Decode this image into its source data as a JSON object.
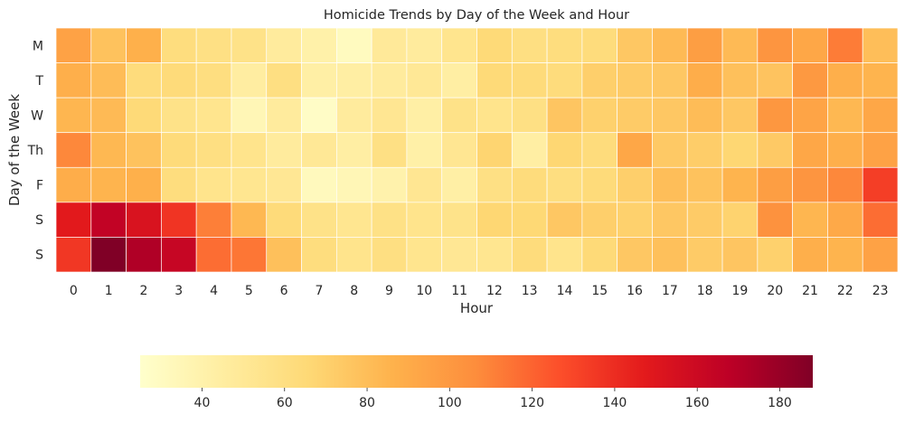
{
  "chart_data": {
    "type": "heatmap",
    "title": "Homicide Trends by Day of the Week and Hour",
    "xlabel": "Hour",
    "ylabel": "Day of the Week",
    "x": [
      "0",
      "1",
      "2",
      "3",
      "4",
      "5",
      "6",
      "7",
      "8",
      "9",
      "10",
      "11",
      "12",
      "13",
      "14",
      "15",
      "16",
      "17",
      "18",
      "19",
      "20",
      "21",
      "22",
      "23"
    ],
    "y": [
      "M",
      "T",
      "W",
      "Th",
      "F",
      "S",
      "S"
    ],
    "values": [
      [
        95,
        78,
        87,
        62,
        59,
        57,
        47,
        41,
        31,
        49,
        47,
        54,
        65,
        60,
        62,
        63,
        75,
        82,
        97,
        82,
        102,
        92,
        112,
        80
      ],
      [
        88,
        81,
        63,
        64,
        61,
        45,
        60,
        43,
        44,
        47,
        50,
        44,
        65,
        64,
        63,
        71,
        73,
        75,
        89,
        79,
        77,
        100,
        88,
        85
      ],
      [
        84,
        82,
        65,
        57,
        54,
        35,
        47,
        28,
        47,
        52,
        43,
        57,
        55,
        59,
        76,
        70,
        73,
        75,
        81,
        75,
        101,
        94,
        83,
        92
      ],
      [
        108,
        83,
        78,
        64,
        60,
        55,
        47,
        50,
        44,
        59,
        42,
        52,
        68,
        44,
        67,
        63,
        92,
        74,
        72,
        67,
        74,
        92,
        88,
        95
      ],
      [
        89,
        85,
        87,
        62,
        55,
        53,
        51,
        32,
        35,
        40,
        52,
        43,
        59,
        63,
        61,
        64,
        71,
        80,
        78,
        85,
        97,
        102,
        108,
        133
      ],
      [
        148,
        165,
        153,
        137,
        111,
        83,
        64,
        57,
        53,
        58,
        55,
        56,
        67,
        66,
        75,
        71,
        70,
        75,
        73,
        69,
        104,
        84,
        91,
        117
      ],
      [
        136,
        188,
        172,
        163,
        117,
        114,
        79,
        62,
        55,
        60,
        54,
        51,
        53,
        63,
        55,
        65,
        75,
        79,
        73,
        76,
        70,
        88,
        85,
        95
      ]
    ],
    "colorbar": {
      "orientation": "horizontal",
      "range": [
        25,
        188
      ],
      "ticks": [
        "40",
        "60",
        "80",
        "100",
        "120",
        "140",
        "160",
        "180"
      ],
      "tick_values": [
        40,
        60,
        80,
        100,
        120,
        140,
        160,
        180
      ]
    },
    "colormap": "YlOrRd",
    "colormap_stops": [
      "#ffffcc",
      "#ffeda0",
      "#fed976",
      "#feb24c",
      "#fd8d3c",
      "#fc4e2a",
      "#e31a1c",
      "#bd0026",
      "#800026"
    ],
    "grid": false,
    "legend": "none"
  }
}
